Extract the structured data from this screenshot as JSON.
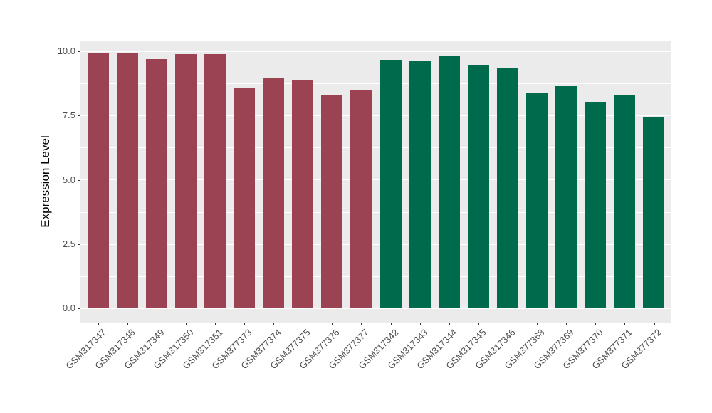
{
  "chart_data": {
    "type": "bar",
    "title": "",
    "xlabel": "",
    "ylabel": "Expression Level",
    "ylim": [
      0,
      10.45
    ],
    "grid": true,
    "legend_position": "none",
    "y_ticks": [
      {
        "value": 0,
        "label": "0.0"
      },
      {
        "value": 2.5,
        "label": "2.5"
      },
      {
        "value": 5,
        "label": "5.0"
      },
      {
        "value": 7.5,
        "label": "7.5"
      },
      {
        "value": 10,
        "label": "10.0"
      }
    ],
    "y_minor_ticks": [
      1.25,
      3.75,
      6.25,
      8.75
    ],
    "bars": [
      {
        "label": "GSM317347",
        "value": 9.92,
        "group": "maroon"
      },
      {
        "label": "GSM317348",
        "value": 9.93,
        "group": "maroon"
      },
      {
        "label": "GSM317349",
        "value": 9.7,
        "group": "maroon"
      },
      {
        "label": "GSM317350",
        "value": 9.9,
        "group": "maroon"
      },
      {
        "label": "GSM317351",
        "value": 9.88,
        "group": "maroon"
      },
      {
        "label": "GSM377373",
        "value": 8.6,
        "group": "maroon"
      },
      {
        "label": "GSM377374",
        "value": 8.95,
        "group": "maroon"
      },
      {
        "label": "GSM377375",
        "value": 8.87,
        "group": "maroon"
      },
      {
        "label": "GSM377376",
        "value": 8.32,
        "group": "maroon"
      },
      {
        "label": "GSM377377",
        "value": 8.48,
        "group": "maroon"
      },
      {
        "label": "GSM317342",
        "value": 9.67,
        "group": "green"
      },
      {
        "label": "GSM317343",
        "value": 9.65,
        "group": "green"
      },
      {
        "label": "GSM317344",
        "value": 9.81,
        "group": "green"
      },
      {
        "label": "GSM317345",
        "value": 9.47,
        "group": "green"
      },
      {
        "label": "GSM317346",
        "value": 9.35,
        "group": "green"
      },
      {
        "label": "GSM377368",
        "value": 8.37,
        "group": "green"
      },
      {
        "label": "GSM377369",
        "value": 8.64,
        "group": "green"
      },
      {
        "label": "GSM377370",
        "value": 8.04,
        "group": "green"
      },
      {
        "label": "GSM377371",
        "value": 8.3,
        "group": "green"
      },
      {
        "label": "GSM377372",
        "value": 7.45,
        "group": "green"
      }
    ],
    "group_colors": {
      "maroon": "#9C4353",
      "green": "#006A4C"
    }
  },
  "style": {
    "background": "#FFFFFF",
    "panel_background": "#EBEBEB",
    "grid_color": "#FFFFFF",
    "tick_mark_color": "#333333",
    "axis_text_color": "#4D4D4D",
    "axis_title_color": "#000000"
  }
}
